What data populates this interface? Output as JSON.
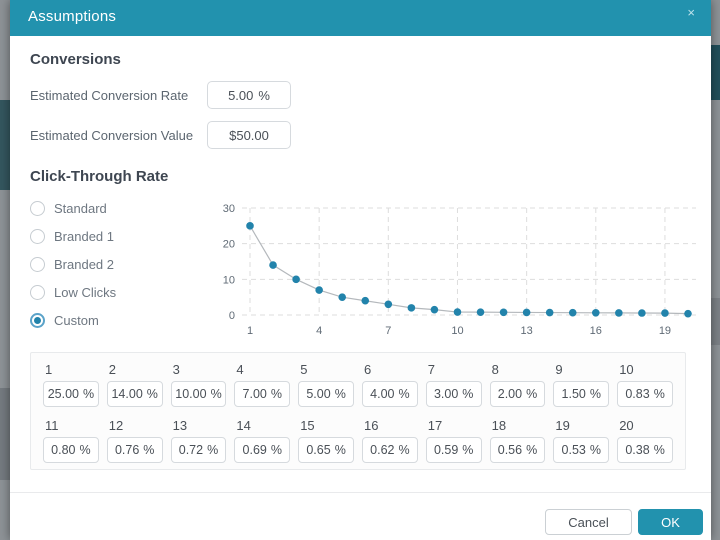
{
  "modal": {
    "title": "Assumptions",
    "close_icon": "×"
  },
  "conversions": {
    "heading": "Conversions",
    "fields": [
      {
        "label": "Estimated Conversion Rate",
        "value": "5.00",
        "suffix": "%"
      },
      {
        "label": "Estimated Conversion Value",
        "value": "$50.00",
        "suffix": ""
      }
    ]
  },
  "ctr": {
    "heading": "Click-Through Rate",
    "options": [
      {
        "label": "Standard",
        "selected": false
      },
      {
        "label": "Branded 1",
        "selected": false
      },
      {
        "label": "Branded 2",
        "selected": false
      },
      {
        "label": "Low Clicks",
        "selected": false
      },
      {
        "label": "Custom",
        "selected": true
      }
    ]
  },
  "chart_data": {
    "type": "line",
    "title": "",
    "xlabel": "",
    "ylabel": "",
    "x": [
      1,
      2,
      3,
      4,
      5,
      6,
      7,
      8,
      9,
      10,
      11,
      12,
      13,
      14,
      15,
      16,
      17,
      18,
      19,
      20
    ],
    "values": [
      25,
      14,
      10,
      7,
      5,
      4,
      3,
      2,
      1.5,
      0.83,
      0.8,
      0.76,
      0.72,
      0.69,
      0.65,
      0.62,
      0.59,
      0.56,
      0.53,
      0.38
    ],
    "x_ticks": [
      1,
      4,
      7,
      10,
      13,
      16,
      19
    ],
    "y_ticks": [
      0,
      10,
      20,
      30
    ],
    "ylim": [
      0,
      30
    ],
    "grid": true,
    "legend": false
  },
  "custom_ctr": {
    "suffix": "%",
    "cells": [
      {
        "index": "1",
        "value": "25.00"
      },
      {
        "index": "2",
        "value": "14.00"
      },
      {
        "index": "3",
        "value": "10.00"
      },
      {
        "index": "4",
        "value": "7.00"
      },
      {
        "index": "5",
        "value": "5.00"
      },
      {
        "index": "6",
        "value": "4.00"
      },
      {
        "index": "7",
        "value": "3.00"
      },
      {
        "index": "8",
        "value": "2.00"
      },
      {
        "index": "9",
        "value": "1.50"
      },
      {
        "index": "10",
        "value": "0.83"
      },
      {
        "index": "11",
        "value": "0.80"
      },
      {
        "index": "12",
        "value": "0.76"
      },
      {
        "index": "13",
        "value": "0.72"
      },
      {
        "index": "14",
        "value": "0.69"
      },
      {
        "index": "15",
        "value": "0.65"
      },
      {
        "index": "16",
        "value": "0.62"
      },
      {
        "index": "17",
        "value": "0.59"
      },
      {
        "index": "18",
        "value": "0.56"
      },
      {
        "index": "19",
        "value": "0.53"
      },
      {
        "index": "20",
        "value": "0.38"
      }
    ]
  },
  "footer": {
    "cancel_label": "Cancel",
    "ok_label": "OK"
  },
  "colors": {
    "accent": "#2292ae",
    "point": "#2283ab",
    "line": "#b4b8bc",
    "gridline": "#dddddd",
    "chart_text": "#5f6a75"
  }
}
